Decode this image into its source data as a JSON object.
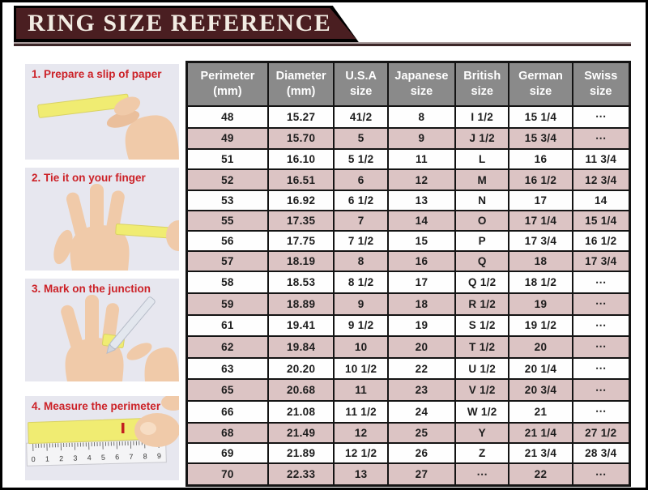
{
  "banner": {
    "title": "RING SIZE REFERENCE"
  },
  "steps": [
    {
      "label": "1. Prepare a slip of paper"
    },
    {
      "label": "2. Tie it on your finger"
    },
    {
      "label": "3. Mark on the junction"
    },
    {
      "label": "4. Measure the perimeter"
    }
  ],
  "ruler": {
    "numbers": [
      "0",
      "1",
      "2",
      "3",
      "4",
      "5",
      "6",
      "7",
      "8",
      "9"
    ]
  },
  "chart_data": {
    "type": "table",
    "title": "RING SIZE REFERENCE",
    "columns": [
      {
        "line1": "Perimeter",
        "line2": "(mm)"
      },
      {
        "line1": "Diameter",
        "line2": "(mm)"
      },
      {
        "line1": "U.S.A",
        "line2": "size"
      },
      {
        "line1": "Japanese",
        "line2": "size"
      },
      {
        "line1": "British",
        "line2": "size"
      },
      {
        "line1": "German",
        "line2": "size"
      },
      {
        "line1": "Swiss",
        "line2": "size"
      }
    ],
    "rows": [
      [
        "48",
        "15.27",
        "41/2",
        "8",
        "I 1/2",
        "15 1/4",
        "⋯"
      ],
      [
        "49",
        "15.70",
        "5",
        "9",
        "J 1/2",
        "15 3/4",
        "⋯"
      ],
      [
        "51",
        "16.10",
        "5 1/2",
        "11",
        "L",
        "16",
        "11 3/4"
      ],
      [
        "52",
        "16.51",
        "6",
        "12",
        "M",
        "16 1/2",
        "12 3/4"
      ],
      [
        "53",
        "16.92",
        "6 1/2",
        "13",
        "N",
        "17",
        "14"
      ],
      [
        "55",
        "17.35",
        "7",
        "14",
        "O",
        "17 1/4",
        "15 1/4"
      ],
      [
        "56",
        "17.75",
        "7 1/2",
        "15",
        "P",
        "17 3/4",
        "16 1/2"
      ],
      [
        "57",
        "18.19",
        "8",
        "16",
        "Q",
        "18",
        "17 3/4"
      ],
      [
        "58",
        "18.53",
        "8 1/2",
        "17",
        "Q 1/2",
        "18 1/2",
        "⋯"
      ],
      [
        "59",
        "18.89",
        "9",
        "18",
        "R 1/2",
        "19",
        "⋯"
      ],
      [
        "61",
        "19.41",
        "9 1/2",
        "19",
        "S 1/2",
        "19 1/2",
        "⋯"
      ],
      [
        "62",
        "19.84",
        "10",
        "20",
        "T 1/2",
        "20",
        "⋯"
      ],
      [
        "63",
        "20.20",
        "10 1/2",
        "22",
        "U 1/2",
        "20 1/4",
        "⋯"
      ],
      [
        "65",
        "20.68",
        "11",
        "23",
        "V 1/2",
        "20 3/4",
        "⋯"
      ],
      [
        "66",
        "21.08",
        "11 1/2",
        "24",
        "W 1/2",
        "21",
        "⋯"
      ],
      [
        "68",
        "21.49",
        "12",
        "25",
        "Y",
        "21 1/4",
        "27 1/2"
      ],
      [
        "69",
        "21.89",
        "12 1/2",
        "26",
        "Z",
        "21 3/4",
        "28 3/4"
      ],
      [
        "70",
        "22.33",
        "13",
        "27",
        "⋯",
        "22",
        "⋯"
      ]
    ]
  },
  "colors": {
    "banner_bg": "#4a1e21",
    "header_bg": "#8a8a8a",
    "row_pink": "#dcc4c4",
    "row_white": "#fefefe",
    "table_border": "#141414",
    "step_label_red": "#cc2127",
    "photo_bg": "#e7e7ef",
    "slip_yellow": "#f0ec72",
    "skin": "#f0caa9"
  }
}
